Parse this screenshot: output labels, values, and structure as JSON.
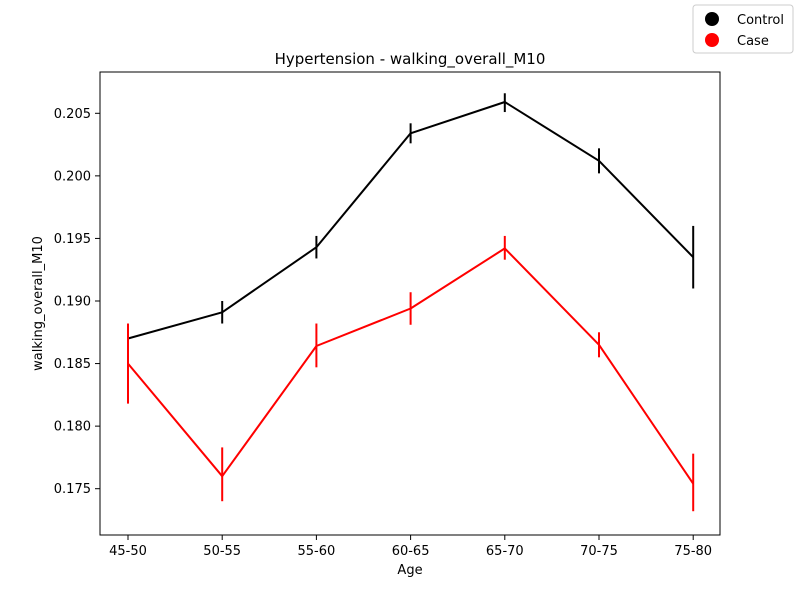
{
  "chart_data": {
    "type": "line",
    "title": "Hypertension - walking_overall_M10",
    "xlabel": "Age",
    "ylabel": "walking_overall_M10",
    "categories": [
      "45-50",
      "50-55",
      "55-60",
      "60-65",
      "65-70",
      "70-75",
      "75-80"
    ],
    "ylim": [
      0.1713,
      0.2083
    ],
    "yticks": [
      "0.175",
      "0.180",
      "0.185",
      "0.190",
      "0.195",
      "0.200",
      "0.205"
    ],
    "legend_position": "top-right",
    "grid": false,
    "series": [
      {
        "name": "Control",
        "color": "#000000",
        "values": [
          0.187,
          0.1891,
          0.1943,
          0.2034,
          0.2059,
          0.2012,
          0.1935
        ],
        "err_low": [
          0.187,
          0.1882,
          0.1934,
          0.2026,
          0.2051,
          0.2002,
          0.191
        ],
        "err_high": [
          0.187,
          0.19,
          0.1952,
          0.2042,
          0.2066,
          0.2022,
          0.196
        ]
      },
      {
        "name": "Case",
        "color": "#ff0000",
        "values": [
          0.185,
          0.176,
          0.1864,
          0.1894,
          0.1942,
          0.1865,
          0.1754
        ],
        "err_low": [
          0.1818,
          0.174,
          0.1847,
          0.1881,
          0.1933,
          0.1855,
          0.1732
        ],
        "err_high": [
          0.1882,
          0.1783,
          0.1882,
          0.1907,
          0.1952,
          0.1875,
          0.1778
        ]
      }
    ]
  }
}
